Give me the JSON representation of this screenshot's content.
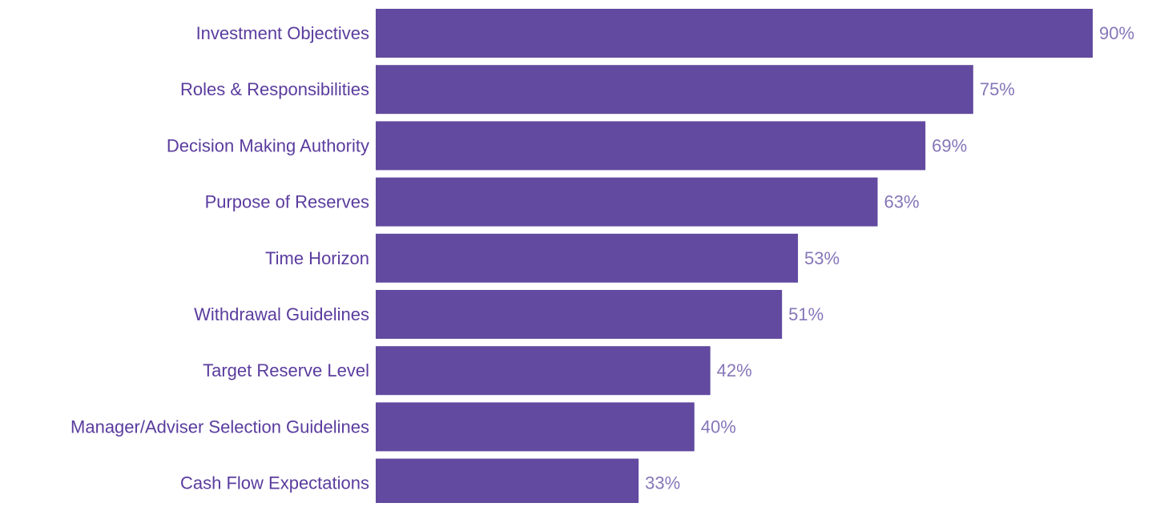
{
  "chart_data": {
    "type": "bar",
    "orientation": "horizontal",
    "categories": [
      "Investment Objectives",
      "Roles & Responsibilities",
      "Decision Making Authority",
      "Purpose of Reserves",
      "Time Horizon",
      "Withdrawal Guidelines",
      "Target Reserve Level",
      "Manager/Adviser Selection Guidelines",
      "Cash Flow Expectations"
    ],
    "values": [
      90,
      75,
      69,
      63,
      53,
      51,
      42,
      40,
      33
    ],
    "value_labels": [
      "90%",
      "75%",
      "69%",
      "63%",
      "53%",
      "51%",
      "42%",
      "40%",
      "33%"
    ],
    "title": "",
    "xlabel": "",
    "ylabel": "",
    "xlim": [
      0,
      90
    ],
    "grid": false,
    "legend": "none"
  },
  "colors": {
    "bar": "#614a9f",
    "category_label": "#5a3c9e",
    "value_label": "#8676b8"
  }
}
